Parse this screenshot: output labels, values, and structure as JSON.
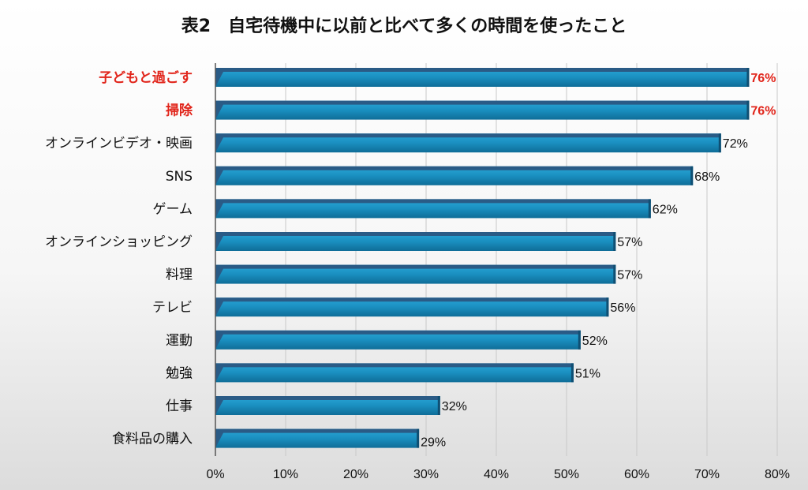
{
  "chart_data": {
    "type": "bar",
    "orientation": "horizontal",
    "title": "表2　自宅待機中に以前と比べて多くの時間を使ったこと",
    "categories": [
      "子どもと過ごす",
      "掃除",
      "オンラインビデオ・映画",
      "SNS",
      "ゲーム",
      "オンラインショッピング",
      "料理",
      "テレビ",
      "運動",
      "勉強",
      "仕事",
      "食料品の購入"
    ],
    "values": [
      76,
      76,
      72,
      68,
      62,
      57,
      57,
      56,
      52,
      51,
      32,
      29
    ],
    "value_labels": [
      "76%",
      "76%",
      "72%",
      "68%",
      "62%",
      "57%",
      "57%",
      "56%",
      "52%",
      "51%",
      "32%",
      "29%"
    ],
    "highlighted": [
      true,
      true,
      false,
      false,
      false,
      false,
      false,
      false,
      false,
      false,
      false,
      false
    ],
    "xlim": [
      0,
      80
    ],
    "xticks": [
      "0%",
      "10%",
      "20%",
      "30%",
      "40%",
      "50%",
      "60%",
      "70%",
      "80%"
    ],
    "grid": true,
    "legend": "none"
  },
  "colors": {
    "bar_main": "#1f96c6",
    "bar_dark": "#0f4f73",
    "bar_top": "#2a5b86",
    "highlight_text": "#e1251b",
    "gridline": "#c9c9c9",
    "axis": "#555555"
  }
}
